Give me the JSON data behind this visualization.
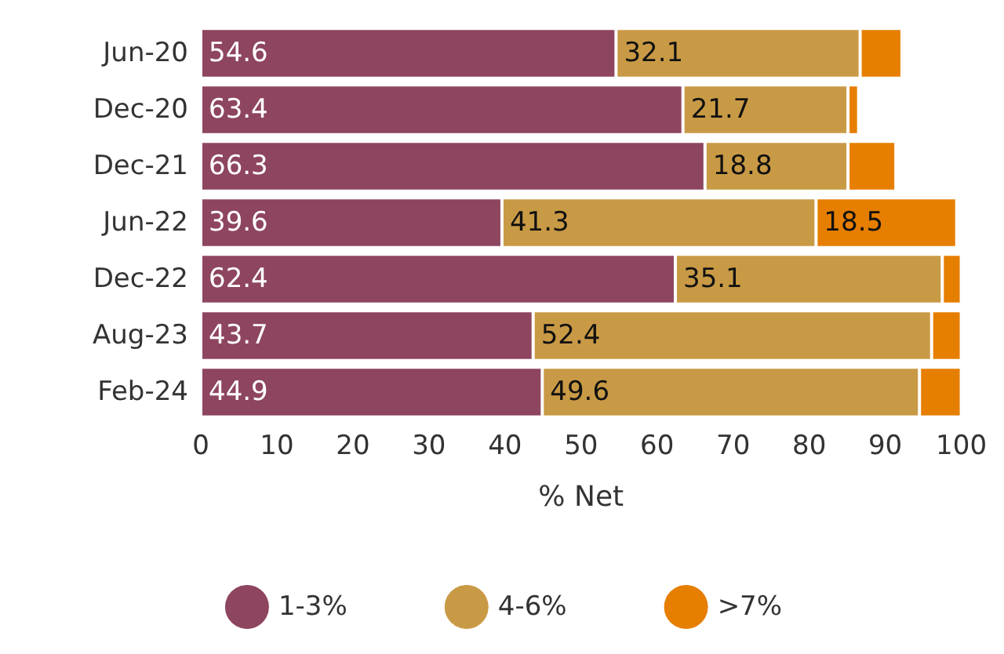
{
  "chart_data": {
    "type": "bar",
    "orientation": "horizontal",
    "stacked": true,
    "xlabel": "% Net",
    "categories": [
      "Jun-20",
      "Dec-20",
      "Dec-21",
      "Jun-22",
      "Dec-22",
      "Aug-23",
      "Feb-24"
    ],
    "series": [
      {
        "name": "1-3%",
        "color": "#8e4560",
        "values": [
          54.6,
          63.4,
          66.3,
          39.6,
          62.4,
          43.7,
          44.9
        ],
        "value_labels": [
          "54.6",
          "63.4",
          "66.3",
          "39.6",
          "62.4",
          "43.7",
          "44.9"
        ]
      },
      {
        "name": "4-6%",
        "color": "#c99a45",
        "values": [
          32.1,
          21.7,
          18.8,
          41.3,
          35.1,
          52.4,
          49.6
        ],
        "value_labels": [
          "32.1",
          "21.7",
          "18.8",
          "41.3",
          "35.1",
          "52.4",
          "49.6"
        ]
      },
      {
        "name": ">7%",
        "color": "#e67e00",
        "values": [
          5.5,
          1.4,
          6.3,
          18.5,
          2.5,
          3.9,
          5.5
        ],
        "value_labels": [
          null,
          null,
          null,
          "18.5",
          null,
          null,
          null
        ]
      }
    ],
    "xlim": [
      0,
      100
    ],
    "xticks": [
      0,
      10,
      20,
      30,
      40,
      50,
      60,
      70,
      80,
      90,
      100
    ],
    "grid": false,
    "legend": "bottom"
  }
}
